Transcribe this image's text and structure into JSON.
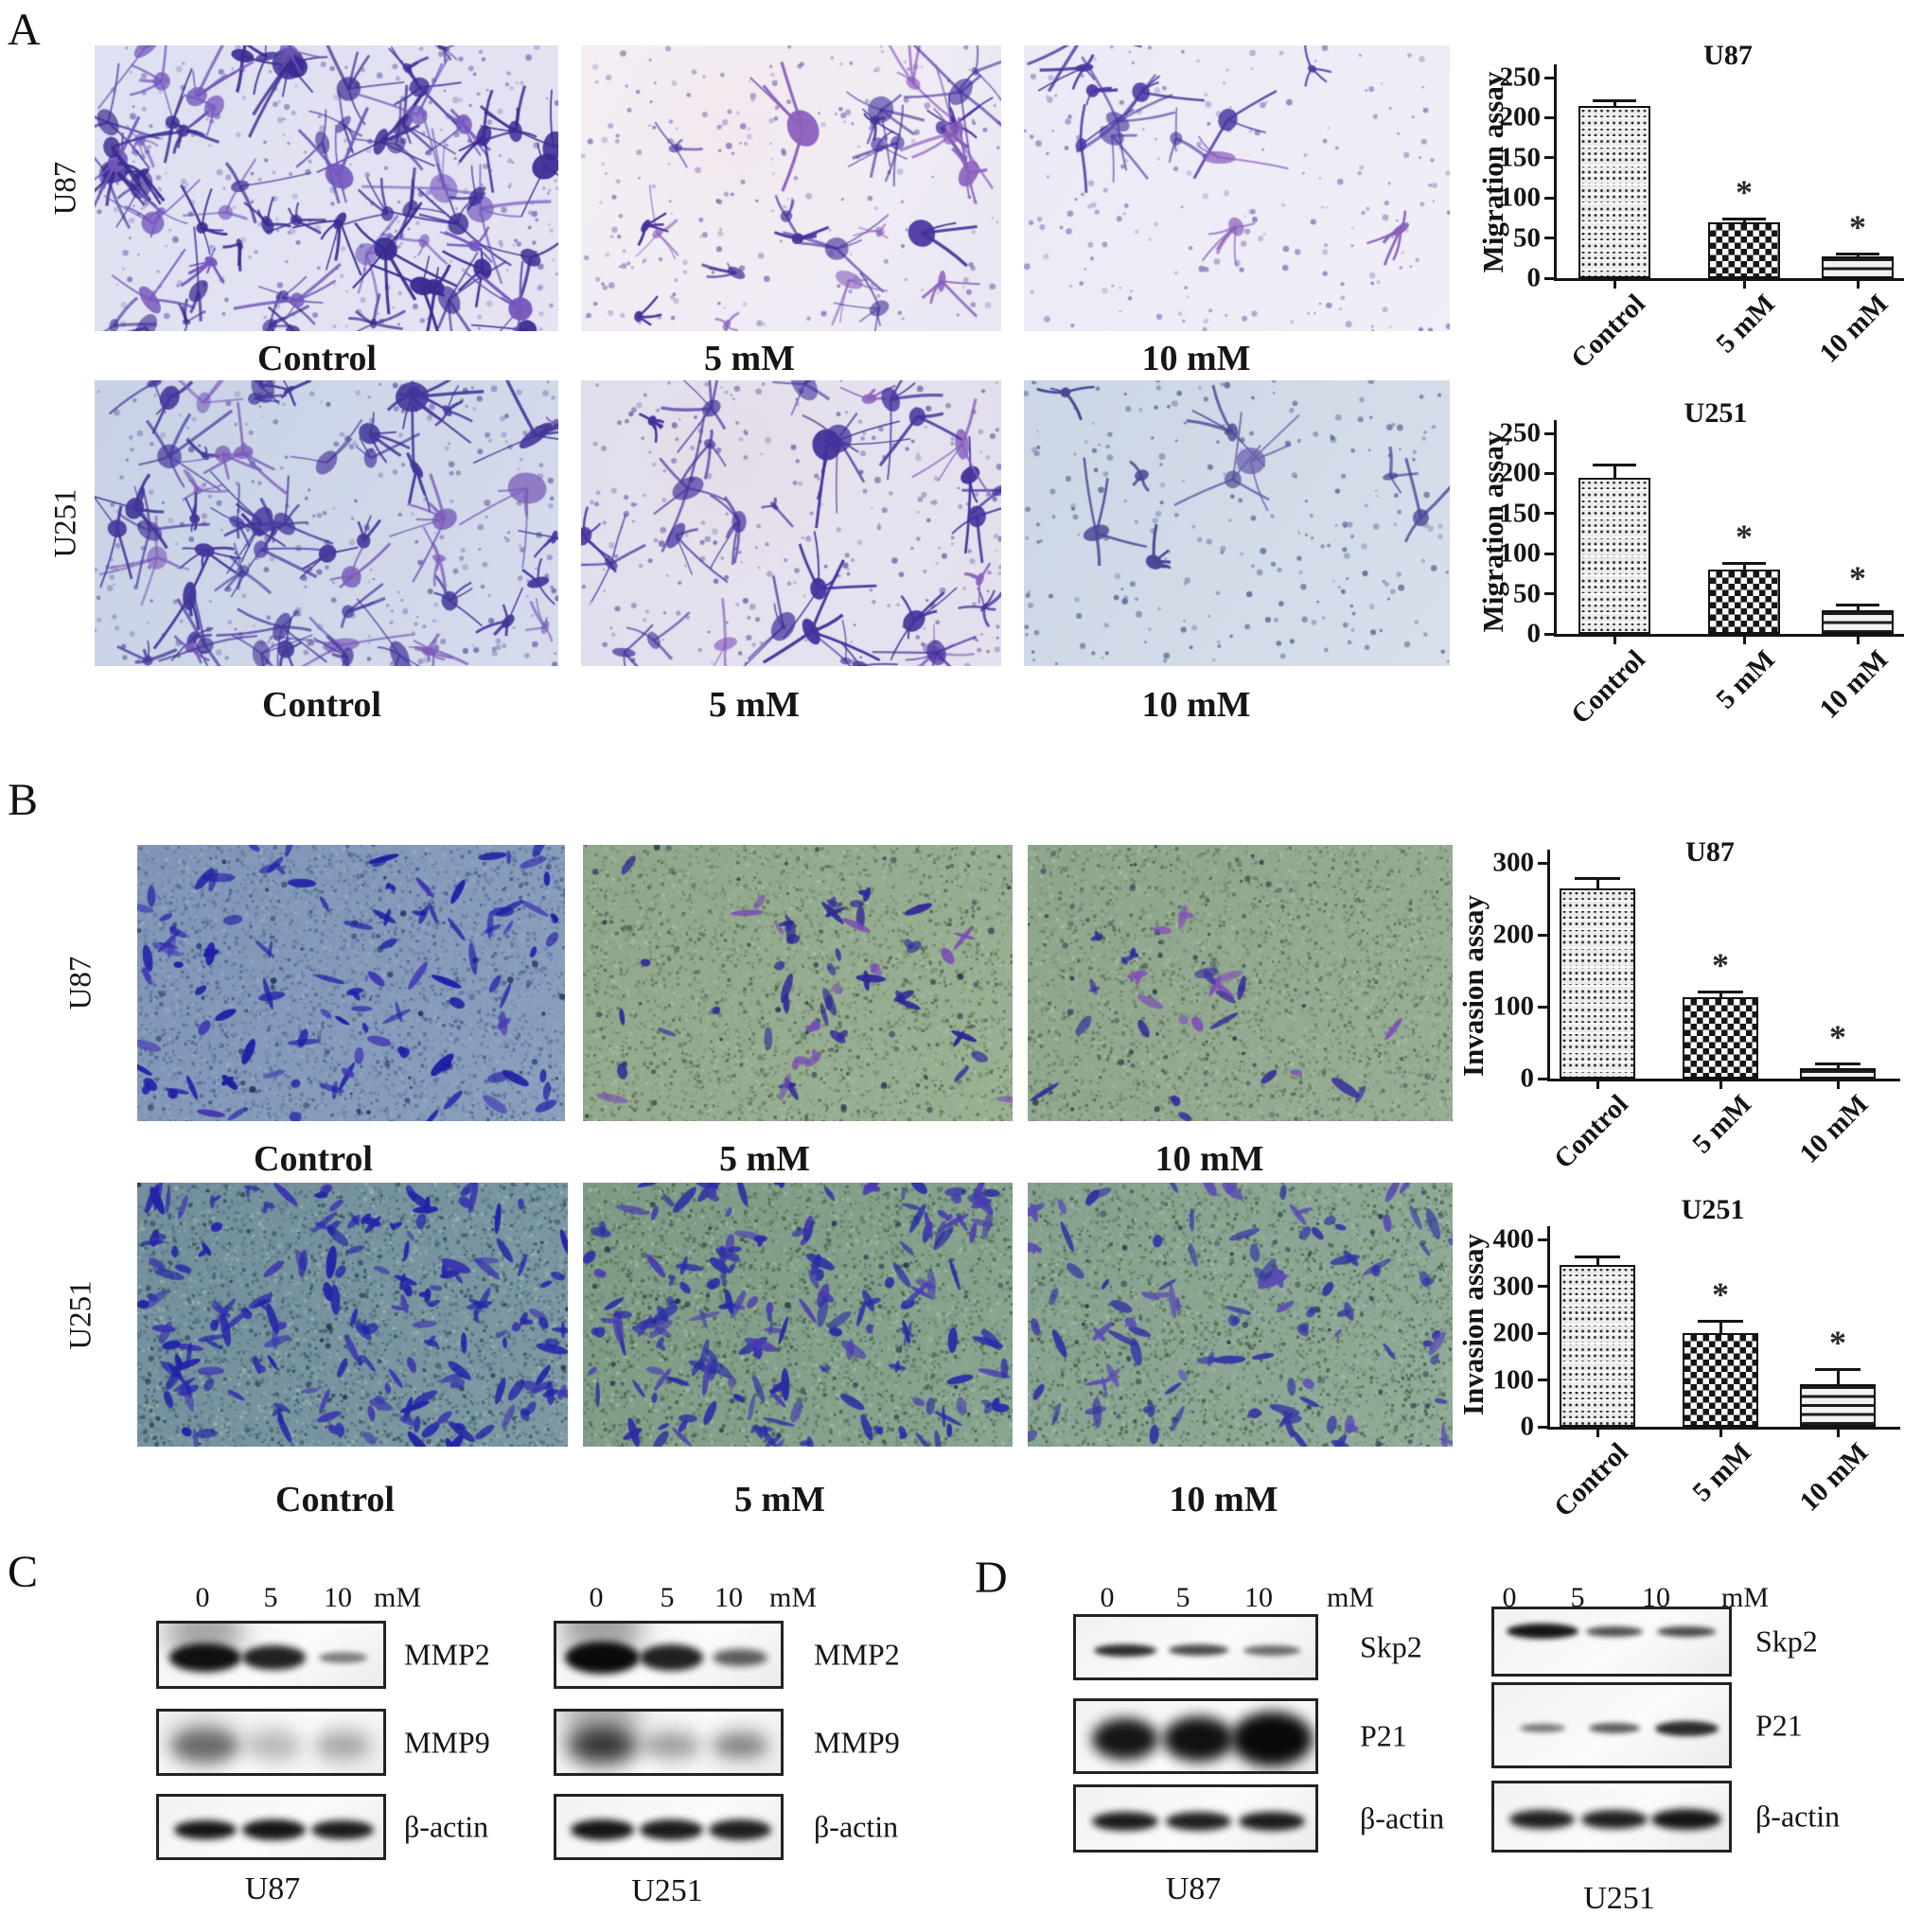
{
  "panels": {
    "A": {
      "letter": "A",
      "assay": "Migration",
      "rows": [
        {
          "cell_line": "U87",
          "treatments": [
            "Control",
            "5 mM",
            "10 mM"
          ]
        },
        {
          "cell_line": "U251",
          "treatments": [
            "Control",
            "5 mM",
            "10 mM"
          ]
        }
      ]
    },
    "B": {
      "letter": "B",
      "assay": "Invasion",
      "rows": [
        {
          "cell_line": "U87",
          "treatments": [
            "Control",
            "5 mM",
            "10 mM"
          ]
        },
        {
          "cell_line": "U251",
          "treatments": [
            "Control",
            "5 mM",
            "10 mM"
          ]
        }
      ]
    },
    "C": {
      "letter": "C",
      "groups": [
        {
          "cell_line": "U87",
          "lane_labels": [
            "0",
            "5",
            "10",
            "mM"
          ],
          "blots": [
            {
              "protein": "MMP2",
              "bands": [
                [
                  0.97,
                  0.92,
                  30,
                  1
                ],
                [
                  0.9,
                  0.8,
                  26,
                  0
                ],
                [
                  0.5,
                  0.62,
                  12,
                  0
                ]
              ]
            },
            {
              "protein": "MMP9",
              "smear": true,
              "bands": [
                [
                  0.5,
                  0.85,
                  34,
                  0
                ],
                [
                  0.2,
                  0.7,
                  30,
                  0
                ],
                [
                  0.25,
                  0.7,
                  28,
                  0
                ]
              ]
            },
            {
              "protein": "β-actin",
              "bands": [
                [
                  0.95,
                  0.8,
                  20,
                  0
                ],
                [
                  0.95,
                  0.8,
                  22,
                  0
                ],
                [
                  0.92,
                  0.8,
                  20,
                  0
                ]
              ]
            }
          ]
        },
        {
          "cell_line": "U251",
          "lane_labels": [
            "0",
            "5",
            "10",
            "mM"
          ],
          "blots": [
            {
              "protein": "MMP2",
              "bands": [
                [
                  1,
                  0.95,
                  34,
                  1
                ],
                [
                  0.9,
                  0.8,
                  28,
                  0
                ],
                [
                  0.65,
                  0.7,
                  18,
                  0
                ]
              ]
            },
            {
              "protein": "MMP9",
              "smear": true,
              "bands": [
                [
                  0.8,
                  0.9,
                  40,
                  1
                ],
                [
                  0.3,
                  0.72,
                  26,
                  0
                ],
                [
                  0.4,
                  0.7,
                  24,
                  0
                ]
              ]
            },
            {
              "protein": "β-actin",
              "bands": [
                [
                  0.95,
                  0.82,
                  22,
                  0
                ],
                [
                  0.92,
                  0.8,
                  22,
                  0
                ],
                [
                  0.9,
                  0.8,
                  22,
                  0
                ]
              ]
            }
          ]
        }
      ]
    },
    "D": {
      "letter": "D",
      "groups": [
        {
          "cell_line": "U87",
          "lane_labels": [
            "0",
            "5",
            "10",
            "mM"
          ],
          "blots": [
            {
              "protein": "Skp2",
              "bands": [
                [
                  0.85,
                  0.75,
                  13,
                  0
                ],
                [
                  0.72,
                  0.72,
                  12,
                  0
                ],
                [
                  0.58,
                  0.68,
                  11,
                  0
                ]
              ]
            },
            {
              "protein": "P21",
              "bands": [
                [
                  0.95,
                  0.8,
                  44,
                  0
                ],
                [
                  0.97,
                  0.85,
                  48,
                  0
                ],
                [
                  1,
                  0.98,
                  58,
                  0
                ]
              ]
            },
            {
              "protein": "β-actin",
              "bands": [
                [
                  0.92,
                  0.8,
                  20,
                  0
                ],
                [
                  0.9,
                  0.78,
                  20,
                  0
                ],
                [
                  0.92,
                  0.8,
                  20,
                  0
                ]
              ]
            }
          ]
        },
        {
          "cell_line": "U251",
          "lane_labels": [
            "0",
            "5",
            "10",
            "mM"
          ],
          "blots": [
            {
              "protein": "Skp2",
              "dy": -14,
              "bands": [
                [
                  0.95,
                  0.88,
                  16,
                  0
                ],
                [
                  0.7,
                  0.7,
                  11,
                  0
                ],
                [
                  0.72,
                  0.72,
                  11,
                  0
                ]
              ]
            },
            {
              "protein": "P21",
              "bands": [
                [
                  0.55,
                  0.55,
                  9,
                  0
                ],
                [
                  0.65,
                  0.62,
                  11,
                  0
                ],
                [
                  0.85,
                  0.78,
                  16,
                  0
                ]
              ]
            },
            {
              "protein": "β-actin",
              "bands": [
                [
                  0.9,
                  0.8,
                  20,
                  0
                ],
                [
                  0.9,
                  0.8,
                  20,
                  0
                ],
                [
                  0.95,
                  0.85,
                  22,
                  0
                ]
              ]
            }
          ]
        }
      ]
    }
  },
  "chart_data": [
    {
      "type": "bar",
      "panel": "A",
      "title": "U87",
      "ylabel": "Migration assay",
      "xlabel": "",
      "categories": [
        "Control",
        "5 mM",
        "10 mM"
      ],
      "values": [
        215,
        70,
        27
      ],
      "errors": [
        8,
        5,
        5
      ],
      "significance": [
        "",
        "*",
        "*"
      ],
      "ylim": [
        0,
        250
      ],
      "yticks": [
        0,
        50,
        100,
        150,
        200,
        250
      ],
      "bar_patterns": [
        "dots",
        "checker",
        "hlines"
      ],
      "grid": false,
      "legend": false
    },
    {
      "type": "bar",
      "panel": "A",
      "title": "U251",
      "ylabel": "Migration assay",
      "xlabel": "",
      "categories": [
        "Control",
        "5 mM",
        "10 mM"
      ],
      "values": [
        195,
        80,
        30
      ],
      "errors": [
        17,
        10,
        8
      ],
      "significance": [
        "",
        "*",
        "*"
      ],
      "ylim": [
        0,
        250
      ],
      "yticks": [
        0,
        50,
        100,
        150,
        200,
        250
      ],
      "bar_patterns": [
        "dots",
        "checker",
        "hlines"
      ],
      "grid": false,
      "legend": false
    },
    {
      "type": "bar",
      "panel": "B",
      "title": "U87",
      "ylabel": "Invasion assay",
      "xlabel": "",
      "categories": [
        "Control",
        "5 mM",
        "10 mM"
      ],
      "values": [
        265,
        113,
        15
      ],
      "errors": [
        15,
        10,
        8
      ],
      "significance": [
        "",
        "*",
        "*"
      ],
      "ylim": [
        0,
        300
      ],
      "yticks": [
        0,
        100,
        200,
        300
      ],
      "bar_patterns": [
        "dots",
        "checker",
        "hlines"
      ],
      "grid": false,
      "legend": false
    },
    {
      "type": "bar",
      "panel": "B",
      "title": "U251",
      "ylabel": "Invasion assay",
      "xlabel": "",
      "categories": [
        "Control",
        "5 mM",
        "10 mM"
      ],
      "values": [
        345,
        200,
        90
      ],
      "errors": [
        20,
        28,
        35
      ],
      "significance": [
        "",
        "*",
        "*"
      ],
      "ylim": [
        0,
        400
      ],
      "yticks": [
        0,
        100,
        200,
        300,
        400
      ],
      "bar_patterns": [
        "dots",
        "checker",
        "hlines"
      ],
      "grid": false,
      "legend": false
    }
  ],
  "micro_images": [
    {
      "panel": "A",
      "row": 0,
      "col": 0,
      "treatment": "Control",
      "style": "star",
      "bg": [
        "#dde1f1",
        "#e7e3f3"
      ],
      "grain": null,
      "tint": null,
      "cluster": null,
      "cells": {
        "count": 72,
        "color": "#3a2a92",
        "alt": "#7356bc"
      },
      "dots": {
        "count": 320,
        "color": "#7d77b5"
      }
    },
    {
      "panel": "A",
      "row": 0,
      "col": 1,
      "treatment": "5 mM",
      "style": "star",
      "bg": [
        "#f2ecf4",
        "#eae6f3"
      ],
      "grain": null,
      "tint": "#f6e8ec",
      "cluster": null,
      "cells": {
        "count": 26,
        "color": "#45319c",
        "alt": "#8a5fbe"
      },
      "dots": {
        "count": 230,
        "color": "#7d77b5"
      }
    },
    {
      "panel": "A",
      "row": 0,
      "col": 2,
      "treatment": "10 mM",
      "style": "star",
      "bg": [
        "#eceaf6",
        "#f1eef7"
      ],
      "grain": null,
      "tint": null,
      "cluster": [
        0.3,
        0.25,
        0.25,
        0.2,
        0.6
      ],
      "cells": {
        "count": 13,
        "color": "#4a35a0",
        "alt": "#8a5fbe"
      },
      "dots": {
        "count": 200,
        "color": "#7d77b5"
      }
    },
    {
      "panel": "A",
      "row": 1,
      "col": 0,
      "treatment": "Control",
      "style": "star",
      "bg": [
        "#c8d1e6",
        "#d6dcec"
      ],
      "grain": null,
      "tint": null,
      "cluster": null,
      "cells": {
        "count": 58,
        "color": "#43369a",
        "alt": "#7a5cb8"
      },
      "dots": {
        "count": 300,
        "color": "#6e6aa8"
      }
    },
    {
      "panel": "A",
      "row": 1,
      "col": 1,
      "treatment": "5 mM",
      "style": "star",
      "bg": [
        "#d8d8ec",
        "#e6e0ee"
      ],
      "grain": null,
      "tint": "#eddfe6",
      "cluster": null,
      "cells": {
        "count": 32,
        "color": "#45319c",
        "alt": "#8a5fbe"
      },
      "dots": {
        "count": 260,
        "color": "#6e6aa8"
      }
    },
    {
      "panel": "A",
      "row": 1,
      "col": 2,
      "treatment": "10 mM",
      "style": "star",
      "bg": [
        "#cdd6e6",
        "#d9dfeb"
      ],
      "grain": null,
      "tint": null,
      "cluster": null,
      "cells": {
        "count": 9,
        "color": "#4a4694",
        "alt": "#6a5fae"
      },
      "dots": {
        "count": 240,
        "color": "#5a6390"
      }
    },
    {
      "panel": "B",
      "row": 0,
      "col": 0,
      "treatment": "Control",
      "style": "spindle",
      "bg": [
        "#8096b8",
        "#8aa0bd"
      ],
      "grain": {
        "colors": [
          "#5d76a2",
          "#9aabc8",
          "#41598a",
          "#7e92b6"
        ],
        "count": 5200
      },
      "tint": null,
      "cluster": null,
      "cells": {
        "count": 95,
        "color": "#201ca6",
        "alt": "#4338b4"
      },
      "dots": {
        "count": 90,
        "color": "#1a2a55"
      }
    },
    {
      "panel": "B",
      "row": 0,
      "col": 1,
      "treatment": "5 mM",
      "style": "spindle",
      "bg": [
        "#90a78c",
        "#9ab194"
      ],
      "grain": {
        "colors": [
          "#6f8a69",
          "#a9bda2",
          "#4d6348",
          "#8fa98a"
        ],
        "count": 5200
      },
      "tint": null,
      "cluster": [
        0.5,
        0.5,
        0.18,
        0.45,
        0.55
      ],
      "cells": {
        "count": 48,
        "color": "#2f2699",
        "alt": "#7a4fb4"
      },
      "dots": {
        "count": 80,
        "color": "#22324a"
      }
    },
    {
      "panel": "B",
      "row": 0,
      "col": 2,
      "treatment": "10 mM",
      "style": "spindle",
      "bg": [
        "#8ea68c",
        "#98ae96"
      ],
      "grain": {
        "colors": [
          "#6f8a69",
          "#a9bda2",
          "#4d6348",
          "#8fa98a"
        ],
        "count": 5200
      },
      "tint": null,
      "cluster": [
        0.35,
        0.45,
        0.2,
        0.3,
        0.5
      ],
      "cells": {
        "count": 26,
        "color": "#352c9c",
        "alt": "#8050b8"
      },
      "dots": {
        "count": 80,
        "color": "#22324a"
      }
    },
    {
      "panel": "B",
      "row": 1,
      "col": 0,
      "treatment": "Control",
      "style": "spindle",
      "bg": [
        "#728f9b",
        "#7e99a4"
      ],
      "grain": {
        "colors": [
          "#4e6f7e",
          "#9eb5ae",
          "#2e4e5e",
          "#7897a2"
        ],
        "count": 5600
      },
      "tint": null,
      "cluster": null,
      "cells": {
        "count": 168,
        "color": "#2222a8",
        "alt": "#3c35b0"
      },
      "dots": {
        "count": 80,
        "color": "#1c2c46"
      }
    },
    {
      "panel": "B",
      "row": 1,
      "col": 1,
      "treatment": "5 mM",
      "style": "spindle",
      "bg": [
        "#7e9a85",
        "#8aa690"
      ],
      "grain": {
        "colors": [
          "#5c7f66",
          "#a2b9a6",
          "#3c5a44",
          "#86a38c"
        ],
        "count": 5600
      },
      "tint": null,
      "cluster": null,
      "cells": {
        "count": 150,
        "color": "#2b2ba6",
        "alt": "#4a3cb0"
      },
      "dots": {
        "count": 80,
        "color": "#1c2c46"
      }
    },
    {
      "panel": "B",
      "row": 1,
      "col": 2,
      "treatment": "10 mM",
      "style": "spindle",
      "bg": [
        "#87a18f",
        "#93ac9a"
      ],
      "grain": {
        "colors": [
          "#5c7f66",
          "#a2b9a6",
          "#3c5a44",
          "#86a38c"
        ],
        "count": 5600
      },
      "tint": null,
      "cluster": null,
      "cells": {
        "count": 92,
        "color": "#3333a4",
        "alt": "#5a4cb4"
      },
      "dots": {
        "count": 80,
        "color": "#1c2c46"
      }
    }
  ]
}
